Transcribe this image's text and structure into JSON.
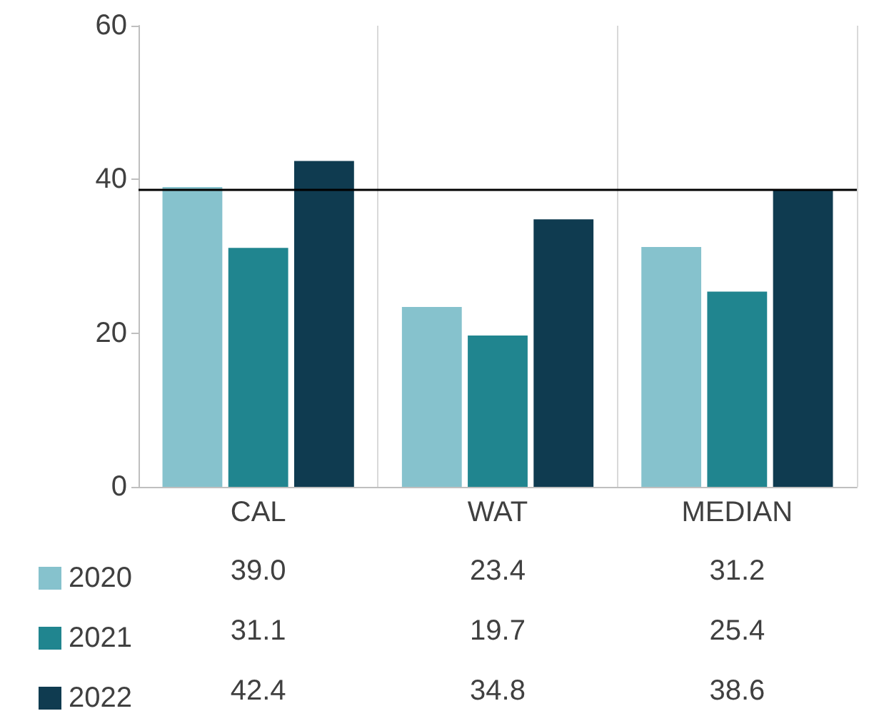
{
  "chart_data": {
    "type": "bar",
    "categories": [
      "CAL",
      "WAT",
      "MEDIAN"
    ],
    "series": [
      {
        "name": "2020",
        "color": "#86c2cd",
        "values": [
          39.0,
          23.4,
          31.2
        ],
        "value_labels": [
          "39.0",
          "23.4",
          "31.2"
        ]
      },
      {
        "name": "2021",
        "color": "#20858f",
        "values": [
          31.1,
          19.7,
          25.4
        ],
        "value_labels": [
          "31.1",
          "19.7",
          "25.4"
        ]
      },
      {
        "name": "2022",
        "color": "#0f3b50",
        "values": [
          42.4,
          34.8,
          38.6
        ],
        "value_labels": [
          "42.4",
          "34.8",
          "38.6"
        ]
      }
    ],
    "ylim": [
      0,
      60
    ],
    "yticks": [
      0,
      20,
      40,
      60
    ],
    "grid": "x",
    "legend": "bottom",
    "ref_lines": [
      {
        "axis": "y",
        "value": 38.6,
        "color": "#000000"
      }
    ]
  }
}
